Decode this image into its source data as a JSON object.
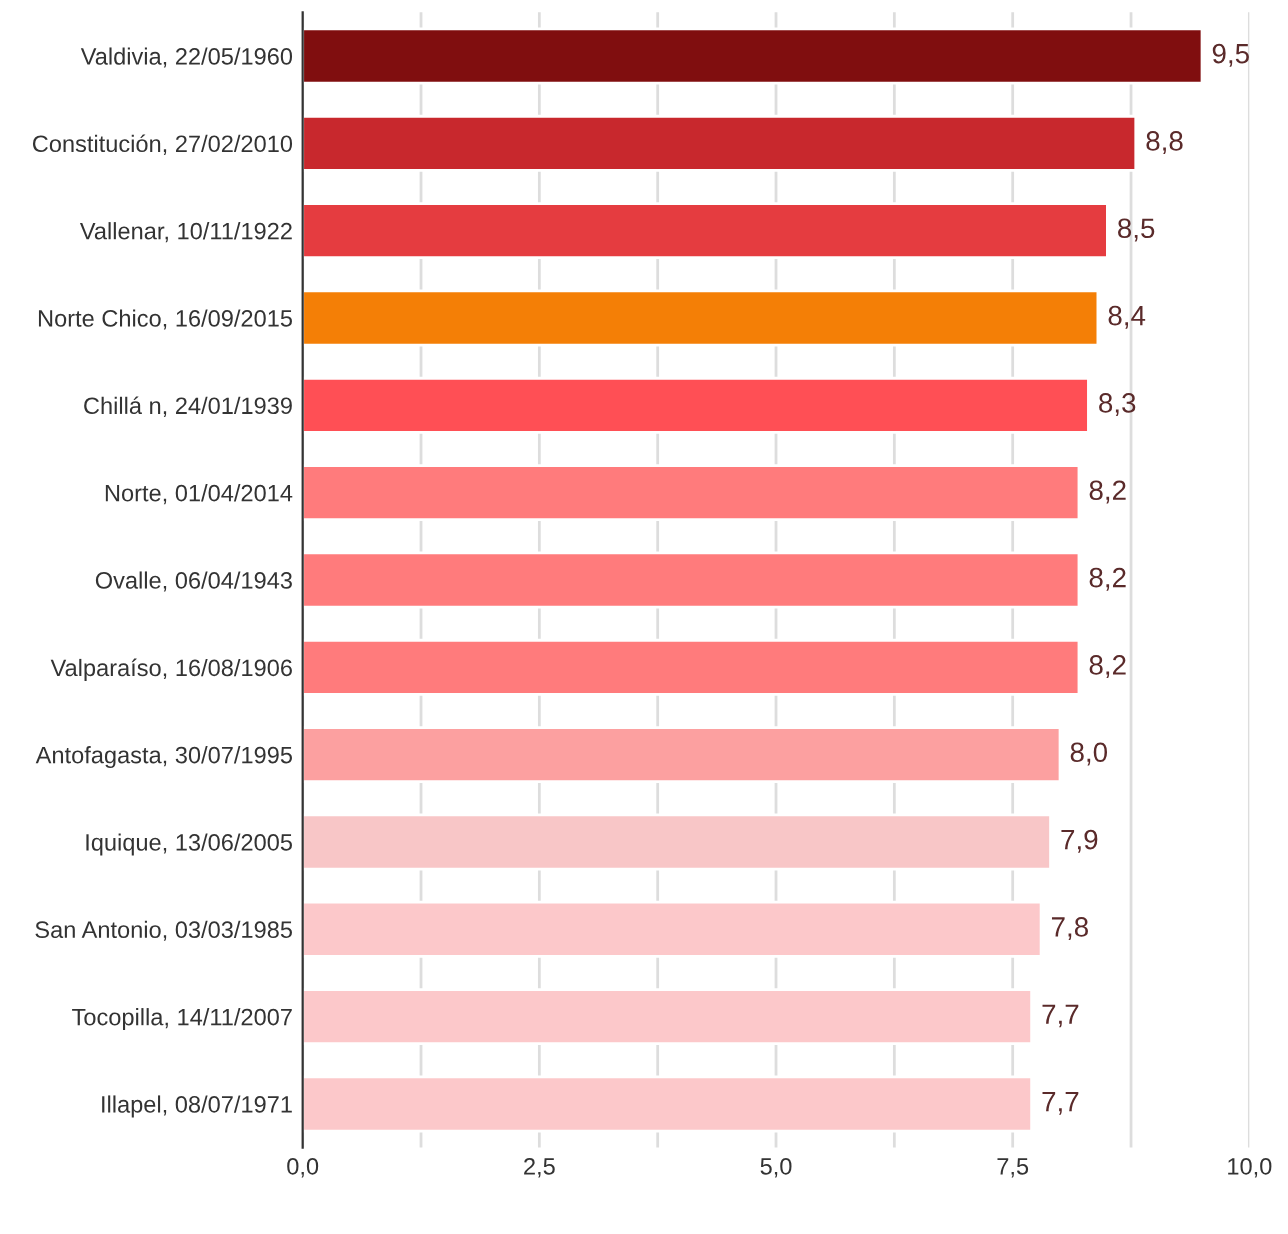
{
  "chart_data": {
    "type": "bar",
    "orientation": "horizontal",
    "categories": [
      "Valdivia, 22/05/1960",
      "Constitución, 27/02/2010",
      "Vallenar, 10/11/1922",
      "Norte Chico, 16/09/2015",
      "Chillá n, 24/01/1939",
      "Norte, 01/04/2014",
      "Ovalle, 06/04/1943",
      "Valparaíso, 16/08/1906",
      "Antofagasta, 30/07/1995",
      "Iquique, 13/06/2005",
      "San Antonio, 03/03/1985",
      "Tocopilla, 14/11/2007",
      "Illapel, 08/07/1971"
    ],
    "values": [
      9.5,
      8.8,
      8.5,
      8.4,
      8.3,
      8.2,
      8.2,
      8.2,
      8.0,
      7.9,
      7.8,
      7.7,
      7.7
    ],
    "value_labels": [
      "9,5",
      "8,8",
      "8,5",
      "8,4",
      "8,3",
      "8,2",
      "8,2",
      "8,2",
      "8,0",
      "7,9",
      "7,8",
      "7,7",
      "7,7"
    ],
    "colors": [
      "#800e0f",
      "#c8282d",
      "#e53c40",
      "#f47f06",
      "#ff4f55",
      "#ff7b7c",
      "#ff7b7c",
      "#ff7b7c",
      "#fca0a0",
      "#f8c6c7",
      "#fcc8ca",
      "#fcc8ca",
      "#fcc8ca"
    ],
    "xlim": [
      0,
      10
    ],
    "xticks": [
      {
        "value": 0,
        "label": "0,0"
      },
      {
        "value": 1.25,
        "label": null
      },
      {
        "value": 2.5,
        "label": "2,5"
      },
      {
        "value": 3.75,
        "label": null
      },
      {
        "value": 5,
        "label": "5,0"
      },
      {
        "value": 6.25,
        "label": null
      },
      {
        "value": 7.5,
        "label": "7,5"
      },
      {
        "value": 8.75,
        "label": null
      },
      {
        "value": 10,
        "label": "10,0"
      }
    ],
    "grid": "x"
  }
}
